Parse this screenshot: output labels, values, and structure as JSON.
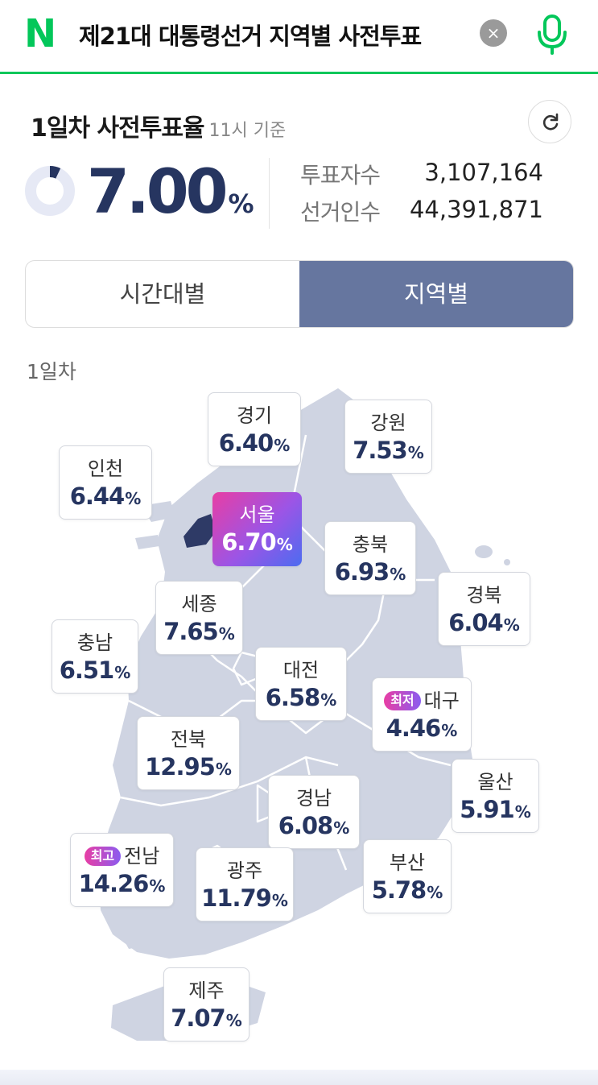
{
  "search": {
    "logo": "N",
    "query": "제21대 대통령선거 지역별 사전투표",
    "clear_label": "×"
  },
  "summary": {
    "title": "1일차 사전투표율",
    "time_basis": "11시 기준",
    "rate": "7.00",
    "rate_unit": "%",
    "rate_fraction": 0.07,
    "voters_label": "투표자수",
    "voters_value": "3,107,164",
    "electorate_label": "선거인수",
    "electorate_value": "44,391,871"
  },
  "tabs": [
    {
      "label": "시간대별",
      "active": false
    },
    {
      "label": "지역별",
      "active": true
    }
  ],
  "day_label": "1일차",
  "colors": {
    "naver_green": "#03c75a",
    "tab_active": "#66769f",
    "rate_text": "#263560",
    "map_fill": "#cfd4e2",
    "seoul_fill": "#2e3a66"
  },
  "regions": {
    "gyeonggi": {
      "name": "경기",
      "rate": "6.40",
      "unit": "%"
    },
    "gangwon": {
      "name": "강원",
      "rate": "7.53",
      "unit": "%"
    },
    "incheon": {
      "name": "인천",
      "rate": "6.44",
      "unit": "%"
    },
    "seoul": {
      "name": "서울",
      "rate": "6.70",
      "unit": "%"
    },
    "chungbuk": {
      "name": "충북",
      "rate": "6.93",
      "unit": "%"
    },
    "sejong": {
      "name": "세종",
      "rate": "7.65",
      "unit": "%"
    },
    "gyeongbuk": {
      "name": "경북",
      "rate": "6.04",
      "unit": "%"
    },
    "chungnam": {
      "name": "충남",
      "rate": "6.51",
      "unit": "%"
    },
    "daejeon": {
      "name": "대전",
      "rate": "6.58",
      "unit": "%"
    },
    "daegu": {
      "name": "대구",
      "rate": "4.46",
      "unit": "%",
      "badge": "최저"
    },
    "jeonbuk": {
      "name": "전북",
      "rate": "12.95",
      "unit": "%"
    },
    "ulsan": {
      "name": "울산",
      "rate": "5.91",
      "unit": "%"
    },
    "gyeongnam": {
      "name": "경남",
      "rate": "6.08",
      "unit": "%"
    },
    "jeonnam": {
      "name": "전남",
      "rate": "14.26",
      "unit": "%",
      "badge": "최고"
    },
    "gwangju": {
      "name": "광주",
      "rate": "11.79",
      "unit": "%"
    },
    "busan": {
      "name": "부산",
      "rate": "5.78",
      "unit": "%"
    },
    "jeju": {
      "name": "제주",
      "rate": "7.07",
      "unit": "%"
    }
  }
}
